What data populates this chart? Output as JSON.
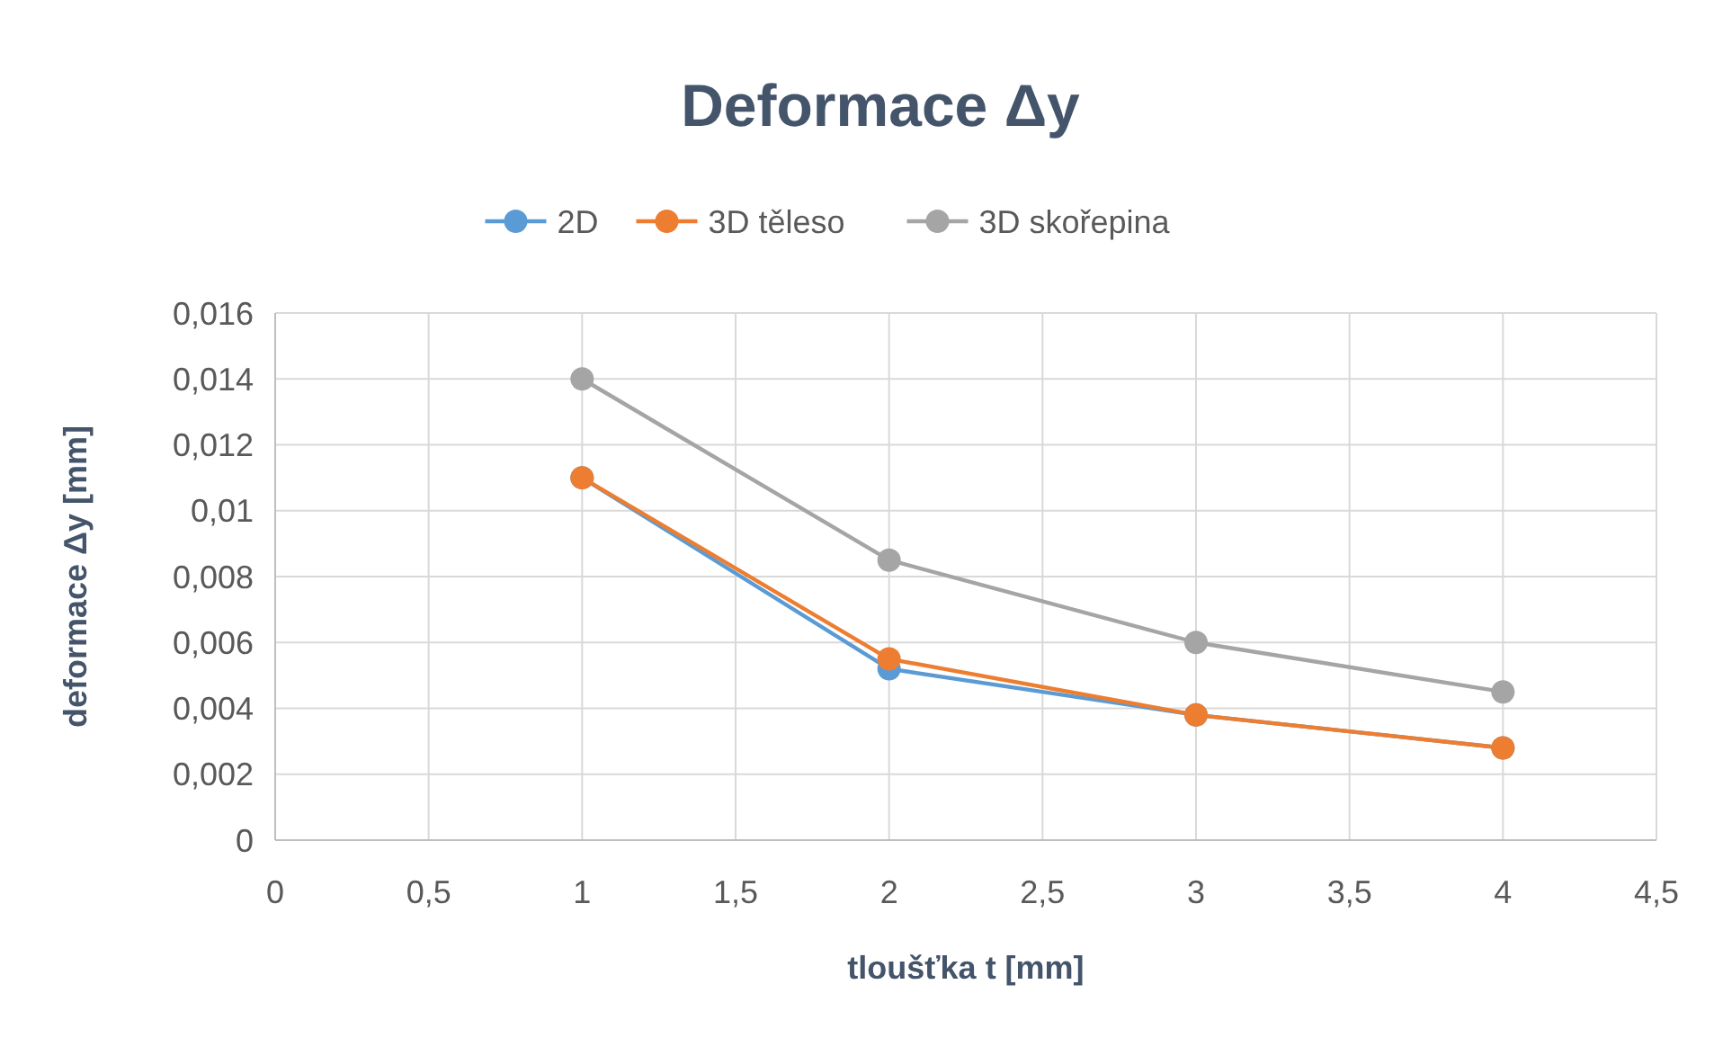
{
  "chart_data": {
    "type": "line",
    "title": "Deformace Δy",
    "xlabel": "tloušťka t [mm]",
    "ylabel": "deformace Δy [mm]",
    "x": [
      1,
      2,
      3,
      4
    ],
    "series": [
      {
        "name": "2D",
        "color": "#5b9bd5",
        "values": [
          0.011,
          0.0052,
          0.0038,
          0.0028
        ]
      },
      {
        "name": "3D těleso",
        "color": "#ed7d31",
        "values": [
          0.011,
          0.0055,
          0.0038,
          0.0028
        ]
      },
      {
        "name": "3D skořepina",
        "color": "#a5a5a5",
        "values": [
          0.014,
          0.0085,
          0.006,
          0.0045
        ]
      }
    ],
    "xlim": [
      0,
      4.5
    ],
    "xticks": [
      0,
      {
        "value": 0.5,
        "label": "0,5"
      },
      1,
      {
        "value": 1.5,
        "label": "1,5"
      },
      2,
      {
        "value": 2.5,
        "label": "2,5"
      },
      3,
      {
        "value": 3.5,
        "label": "3,5"
      },
      4,
      {
        "value": 4.5,
        "label": "4,5"
      }
    ],
    "ylim": [
      0,
      0.016
    ],
    "yticks": [
      0,
      {
        "value": 0.002,
        "label": "0,002"
      },
      {
        "value": 0.004,
        "label": "0,004"
      },
      {
        "value": 0.006,
        "label": "0,006"
      },
      {
        "value": 0.008,
        "label": "0,008"
      },
      {
        "value": 0.01,
        "label": "0,01"
      },
      {
        "value": 0.012,
        "label": "0,012"
      },
      {
        "value": 0.014,
        "label": "0,014"
      },
      {
        "value": 0.016,
        "label": "0,016"
      }
    ],
    "grid": true,
    "legend": "top",
    "marker": "circle",
    "line_style": "solid"
  }
}
